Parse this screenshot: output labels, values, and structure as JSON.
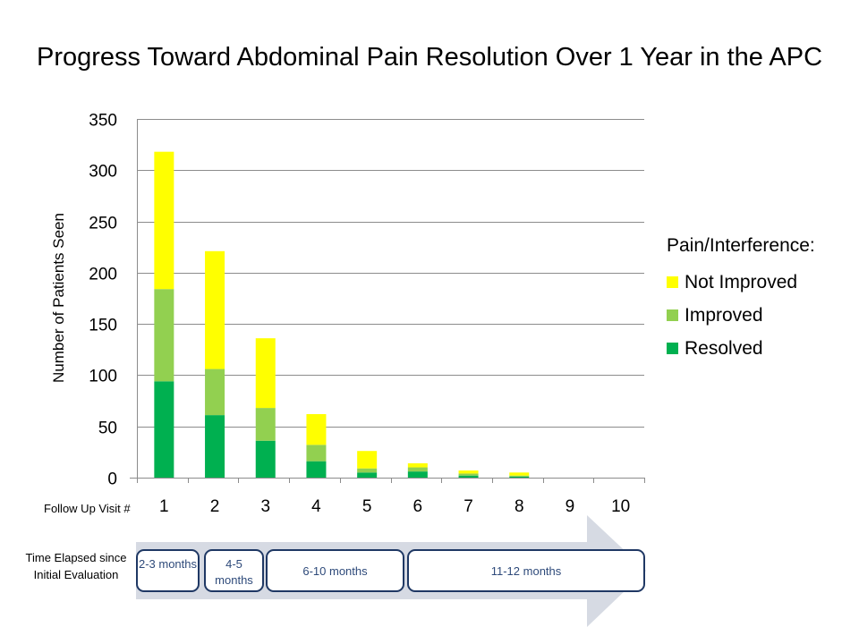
{
  "chart_data": {
    "type": "bar",
    "stacked": true,
    "title": "Progress Toward Abdominal Pain Resolution Over 1 Year in the APC",
    "ylabel": "Number of Patients Seen",
    "xlabel": "Follow Up Visit #",
    "ylim": [
      0,
      350
    ],
    "yticks": [
      0,
      50,
      100,
      150,
      200,
      250,
      300,
      350
    ],
    "grid": true,
    "categories": [
      "1",
      "2",
      "3",
      "4",
      "5",
      "6",
      "7",
      "8",
      "9",
      "10"
    ],
    "legend": {
      "title": "Pain/Interference:",
      "placement": "right"
    },
    "series": [
      {
        "name": "Resolved",
        "color": "#00b050",
        "values": [
          94,
          61,
          36,
          16,
          5,
          6,
          2,
          1,
          0,
          0
        ]
      },
      {
        "name": "Improved",
        "color": "#92d050",
        "values": [
          90,
          45,
          32,
          16,
          4,
          4,
          2,
          1,
          0,
          0
        ]
      },
      {
        "name": "Not Improved",
        "color": "#ffff00",
        "values": [
          134,
          115,
          68,
          30,
          17,
          4,
          3,
          3,
          0,
          0
        ]
      }
    ]
  },
  "timeline": {
    "label": "Time  Elapsed since Initial Evaluation",
    "arrow_color": "#d6dae3",
    "periods": [
      {
        "label": "2-3 months"
      },
      {
        "label": "4-5 months"
      },
      {
        "label": "6-10 months"
      },
      {
        "label": "11-12 months"
      }
    ]
  }
}
